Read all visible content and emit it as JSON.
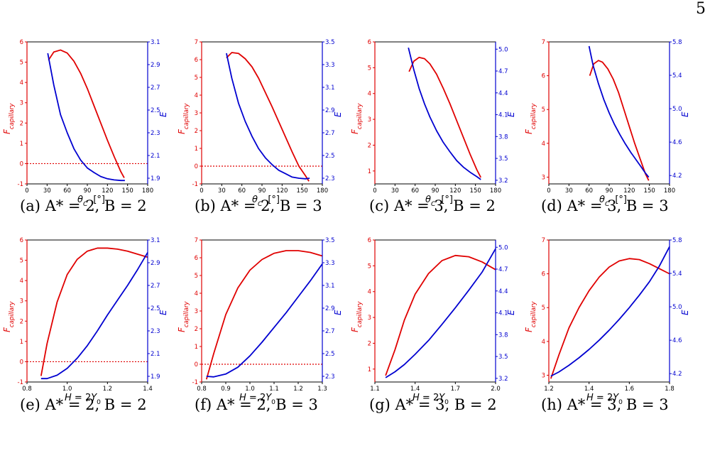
{
  "page_number": "5",
  "colors": {
    "red": "#e00000",
    "blue": "#0000d0",
    "axis": "#000000"
  },
  "captions": [
    "(a) A* = 2, B = 2",
    "(b) A* = 2, B = 3",
    "(c) A* = 3, B = 2",
    "(d) A* = 3, B = 3",
    "(e) A* = 2, B = 2",
    "(f) A* = 2, B = 3",
    "(g) A* = 3, B = 2",
    "(h) A* = 3, B = 3"
  ],
  "labels": {
    "left_y": "F_capillary",
    "right_y": "E",
    "x_theta": "θ_C   [°]",
    "x_H": "H = 2Y_0"
  },
  "chart_data": [
    {
      "type": "line",
      "id": "a",
      "xlabel": "θ_C   [°]",
      "xlim": [
        0,
        180
      ],
      "xticks": [
        "0",
        "30",
        "60",
        "90",
        "120",
        "150",
        "180"
      ],
      "ylim_left": [
        -1,
        6
      ],
      "yticks_left": [
        "-1",
        "0",
        "1",
        "2",
        "3",
        "4",
        "5",
        "6"
      ],
      "ylim_right": [
        1.85,
        3.1
      ],
      "yticks_right": [
        "1.9",
        "2.1",
        "2.3",
        "2.5",
        "2.7",
        "2.9",
        "3.1"
      ],
      "zero_line": true,
      "series": [
        {
          "axis": "left",
          "color": "red",
          "x": [
            32,
            40,
            50,
            60,
            70,
            80,
            90,
            100,
            110,
            120,
            130,
            140,
            145
          ],
          "y": [
            5.1,
            5.5,
            5.6,
            5.45,
            5.05,
            4.45,
            3.7,
            2.85,
            2.0,
            1.15,
            0.35,
            -0.4,
            -0.7
          ]
        },
        {
          "axis": "right",
          "color": "blue",
          "x": [
            31,
            40,
            50,
            60,
            70,
            80,
            90,
            100,
            110,
            120,
            130,
            140,
            146
          ],
          "y": [
            3.0,
            2.72,
            2.46,
            2.3,
            2.16,
            2.06,
            1.99,
            1.95,
            1.915,
            1.895,
            1.885,
            1.88,
            1.88
          ]
        }
      ]
    },
    {
      "type": "line",
      "id": "b",
      "xlabel": "θ_C   [°]",
      "xlim": [
        0,
        180
      ],
      "xticks": [
        "0",
        "30",
        "60",
        "90",
        "120",
        "150",
        "180"
      ],
      "ylim_left": [
        -1,
        7
      ],
      "yticks_left": [
        "-1",
        "0",
        "1",
        "2",
        "3",
        "4",
        "5",
        "6",
        "7"
      ],
      "ylim_right": [
        2.25,
        3.5
      ],
      "yticks_right": [
        "2.3",
        "2.5",
        "2.7",
        "2.9",
        "3.1",
        "3.3",
        "3.5"
      ],
      "zero_line": true,
      "series": [
        {
          "axis": "left",
          "color": "red",
          "x": [
            37,
            45,
            55,
            65,
            75,
            85,
            95,
            105,
            115,
            125,
            135,
            145,
            155,
            160
          ],
          "y": [
            6.1,
            6.4,
            6.35,
            6.05,
            5.6,
            4.95,
            4.15,
            3.35,
            2.5,
            1.65,
            0.8,
            0.0,
            -0.55,
            -0.85
          ]
        },
        {
          "axis": "right",
          "color": "blue",
          "x": [
            37,
            45,
            55,
            65,
            75,
            85,
            95,
            105,
            115,
            125,
            135,
            145,
            155,
            161
          ],
          "y": [
            3.4,
            3.18,
            2.96,
            2.8,
            2.67,
            2.56,
            2.48,
            2.42,
            2.37,
            2.34,
            2.31,
            2.3,
            2.295,
            2.3
          ]
        }
      ]
    },
    {
      "type": "line",
      "id": "c",
      "xlabel": "θ_C   [°]",
      "xlim": [
        0,
        180
      ],
      "xticks": [
        "0",
        "30",
        "60",
        "90",
        "120",
        "150",
        "180"
      ],
      "ylim_left": [
        0.5,
        6
      ],
      "yticks_left": [
        "1",
        "2",
        "3",
        "4",
        "5",
        "6"
      ],
      "ylim_right": [
        3.15,
        5.1
      ],
      "yticks_right": [
        "3.2",
        "3.5",
        "3.8",
        "4.1",
        "4.4",
        "4.7",
        "5.0"
      ],
      "zero_line": false,
      "series": [
        {
          "axis": "left",
          "color": "red",
          "x": [
            51,
            58,
            66,
            74,
            82,
            92,
            102,
            112,
            122,
            132,
            142,
            152,
            158
          ],
          "y": [
            4.85,
            5.25,
            5.4,
            5.35,
            5.15,
            4.75,
            4.2,
            3.6,
            2.95,
            2.3,
            1.65,
            1.05,
            0.75
          ]
        },
        {
          "axis": "right",
          "color": "blue",
          "x": [
            50,
            58,
            66,
            74,
            82,
            92,
            102,
            112,
            122,
            132,
            142,
            152,
            158
          ],
          "y": [
            5.02,
            4.72,
            4.46,
            4.25,
            4.07,
            3.88,
            3.72,
            3.59,
            3.47,
            3.38,
            3.31,
            3.25,
            3.21
          ]
        }
      ]
    },
    {
      "type": "line",
      "id": "d",
      "xlabel": "θ_C   [°]",
      "xlim": [
        0,
        180
      ],
      "xticks": [
        "0",
        "30",
        "60",
        "90",
        "120",
        "150",
        "180"
      ],
      "ylim_left": [
        2.8,
        7
      ],
      "yticks_left": [
        "3",
        "4",
        "5",
        "6",
        "7"
      ],
      "ylim_right": [
        4.1,
        5.8
      ],
      "yticks_right": [
        "4.2",
        "4.6",
        "5.0",
        "5.4",
        "5.8"
      ],
      "zero_line": false,
      "series": [
        {
          "axis": "left",
          "color": "red",
          "x": [
            61,
            67,
            74,
            80,
            88,
            96,
            104,
            112,
            120,
            128,
            136,
            144,
            149
          ],
          "y": [
            6.0,
            6.35,
            6.45,
            6.4,
            6.2,
            5.9,
            5.5,
            5.0,
            4.5,
            4.0,
            3.55,
            3.1,
            2.9
          ]
        },
        {
          "axis": "right",
          "color": "blue",
          "x": [
            60,
            66,
            74,
            82,
            90,
            98,
            106,
            114,
            122,
            130,
            138,
            144,
            149
          ],
          "y": [
            5.75,
            5.52,
            5.3,
            5.11,
            4.95,
            4.81,
            4.69,
            4.58,
            4.48,
            4.39,
            4.3,
            4.23,
            4.18
          ]
        }
      ]
    },
    {
      "type": "line",
      "id": "e",
      "xlabel": "H = 2Y_0",
      "xlim": [
        0.8,
        1.4
      ],
      "xticks": [
        "0.8",
        "1.0",
        "1.2",
        "1.4"
      ],
      "ylim_left": [
        -1,
        6
      ],
      "yticks_left": [
        "-1",
        "0",
        "1",
        "2",
        "3",
        "4",
        "5",
        "6"
      ],
      "ylim_right": [
        1.85,
        3.1
      ],
      "yticks_right": [
        "1.9",
        "2.1",
        "2.3",
        "2.5",
        "2.7",
        "2.9",
        "3.1"
      ],
      "zero_line": true,
      "series": [
        {
          "axis": "left",
          "color": "red",
          "x": [
            0.87,
            0.9,
            0.95,
            1.0,
            1.05,
            1.1,
            1.15,
            1.2,
            1.25,
            1.3,
            1.35,
            1.4
          ],
          "y": [
            -0.7,
            0.9,
            2.95,
            4.3,
            5.05,
            5.45,
            5.6,
            5.6,
            5.55,
            5.45,
            5.3,
            5.15
          ]
        },
        {
          "axis": "right",
          "color": "blue",
          "x": [
            0.87,
            0.9,
            0.95,
            1.0,
            1.05,
            1.1,
            1.15,
            1.2,
            1.25,
            1.3,
            1.35,
            1.4
          ],
          "y": [
            1.88,
            1.88,
            1.91,
            1.97,
            2.06,
            2.17,
            2.3,
            2.44,
            2.57,
            2.7,
            2.84,
            2.99
          ]
        }
      ]
    },
    {
      "type": "line",
      "id": "f",
      "xlabel": "H = 2Y_0",
      "xlim": [
        0.8,
        1.3
      ],
      "xticks": [
        "0.8",
        "0.9",
        "1.0",
        "1.1",
        "1.2",
        "1.3"
      ],
      "ylim_left": [
        -1,
        7
      ],
      "yticks_left": [
        "-1",
        "0",
        "1",
        "2",
        "3",
        "4",
        "5",
        "6",
        "7"
      ],
      "ylim_right": [
        2.25,
        3.5
      ],
      "yticks_right": [
        "2.3",
        "2.5",
        "2.7",
        "2.9",
        "3.1",
        "3.3",
        "3.5"
      ],
      "zero_line": true,
      "series": [
        {
          "axis": "left",
          "color": "red",
          "x": [
            0.82,
            0.85,
            0.9,
            0.95,
            1.0,
            1.05,
            1.1,
            1.15,
            1.2,
            1.25,
            1.3
          ],
          "y": [
            -0.85,
            0.6,
            2.8,
            4.3,
            5.3,
            5.9,
            6.25,
            6.4,
            6.4,
            6.3,
            6.1
          ]
        },
        {
          "axis": "right",
          "color": "blue",
          "x": [
            0.82,
            0.85,
            0.9,
            0.95,
            1.0,
            1.05,
            1.1,
            1.15,
            1.2,
            1.25,
            1.3
          ],
          "y": [
            2.3,
            2.295,
            2.32,
            2.38,
            2.48,
            2.6,
            2.73,
            2.86,
            3.0,
            3.14,
            3.29
          ]
        }
      ]
    },
    {
      "type": "line",
      "id": "g",
      "xlabel": "H = 2Y_0",
      "xlim": [
        1.1,
        2.0
      ],
      "xticks": [
        "1.1",
        "1.4",
        "1.7",
        "2.0"
      ],
      "ylim_left": [
        0.5,
        6
      ],
      "yticks_left": [
        "1",
        "2",
        "3",
        "4",
        "5",
        "6"
      ],
      "ylim_right": [
        3.15,
        5.1
      ],
      "yticks_right": [
        "3.2",
        "3.5",
        "3.8",
        "4.1",
        "4.4",
        "4.7",
        "5.0"
      ],
      "zero_line": false,
      "series": [
        {
          "axis": "left",
          "color": "red",
          "x": [
            1.18,
            1.25,
            1.32,
            1.4,
            1.5,
            1.6,
            1.7,
            1.8,
            1.9,
            2.0
          ],
          "y": [
            0.75,
            1.75,
            2.9,
            3.9,
            4.7,
            5.2,
            5.4,
            5.35,
            5.15,
            4.85
          ]
        },
        {
          "axis": "right",
          "color": "blue",
          "x": [
            1.18,
            1.25,
            1.32,
            1.4,
            1.5,
            1.6,
            1.7,
            1.8,
            1.9,
            2.0
          ],
          "y": [
            3.21,
            3.29,
            3.39,
            3.53,
            3.72,
            3.94,
            4.17,
            4.41,
            4.66,
            4.98
          ]
        }
      ]
    },
    {
      "type": "line",
      "id": "h",
      "xlabel": "H = 2Y_0",
      "xlim": [
        1.2,
        1.8
      ],
      "xticks": [
        "1.2",
        "1.4",
        "1.6",
        "1.8"
      ],
      "ylim_left": [
        2.8,
        7
      ],
      "yticks_left": [
        "3",
        "4",
        "5",
        "6",
        "7"
      ],
      "ylim_right": [
        4.1,
        5.8
      ],
      "yticks_right": [
        "4.2",
        "4.6",
        "5.0",
        "5.4",
        "5.8"
      ],
      "zero_line": false,
      "series": [
        {
          "axis": "left",
          "color": "red",
          "x": [
            1.21,
            1.25,
            1.3,
            1.35,
            1.4,
            1.45,
            1.5,
            1.55,
            1.6,
            1.65,
            1.7,
            1.75,
            1.8
          ],
          "y": [
            2.9,
            3.6,
            4.4,
            5.0,
            5.5,
            5.9,
            6.2,
            6.38,
            6.45,
            6.42,
            6.3,
            6.15,
            6.0
          ]
        },
        {
          "axis": "right",
          "color": "blue",
          "x": [
            1.21,
            1.25,
            1.3,
            1.35,
            1.4,
            1.45,
            1.5,
            1.55,
            1.6,
            1.65,
            1.7,
            1.75,
            1.8
          ],
          "y": [
            4.17,
            4.22,
            4.3,
            4.39,
            4.49,
            4.6,
            4.72,
            4.85,
            4.99,
            5.14,
            5.3,
            5.49,
            5.72
          ]
        }
      ]
    }
  ]
}
